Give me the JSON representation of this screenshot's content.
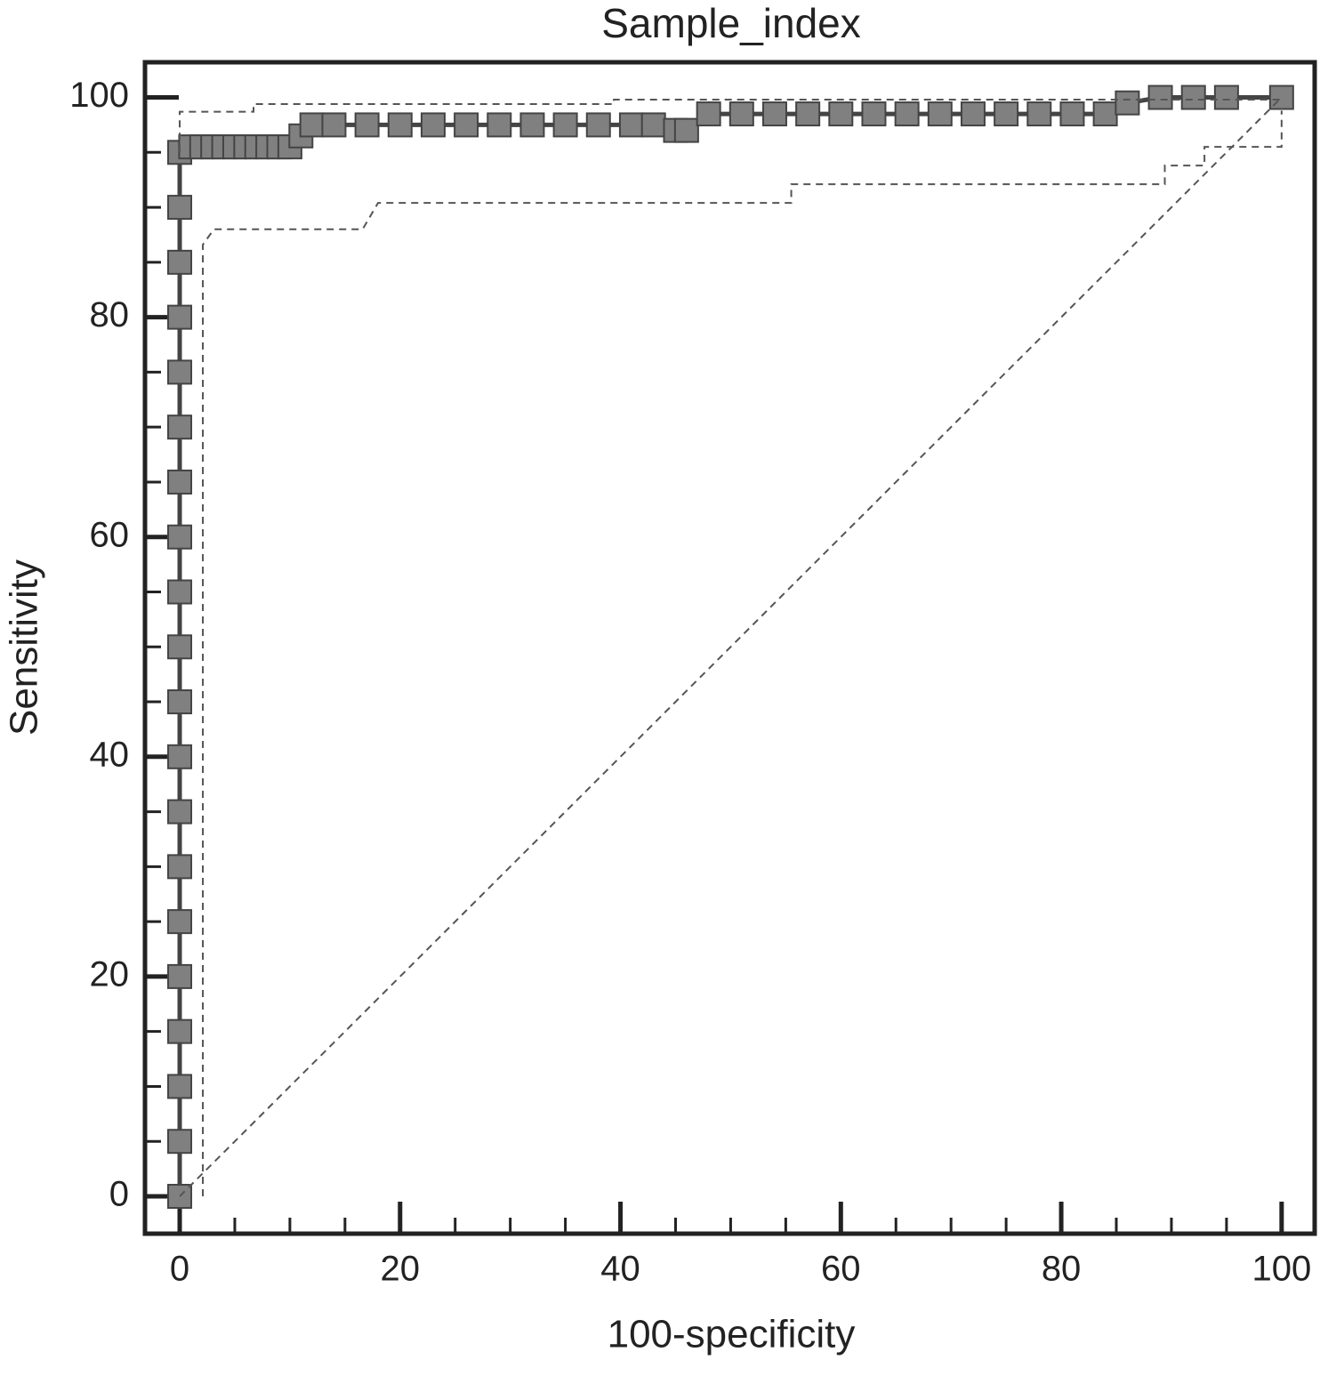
{
  "chart_data": {
    "type": "line",
    "title": "Sample_index",
    "x_label": "100-specificity",
    "y_label": "Sensitivity",
    "xlim": [
      -3.15,
      103
    ],
    "ylim": [
      -3.4,
      103.2
    ],
    "xticks": [
      0,
      20,
      40,
      60,
      80,
      100
    ],
    "yticks": [
      0,
      20,
      40,
      60,
      80,
      100
    ],
    "xminorticks": [
      5,
      10,
      15,
      25,
      30,
      35,
      45,
      50,
      55,
      65,
      70,
      75,
      85,
      90,
      95
    ],
    "yminorticks": [
      5,
      10,
      15,
      25,
      30,
      35,
      45,
      50,
      55,
      65,
      70,
      75,
      85,
      90,
      95
    ],
    "series": [
      {
        "style": "markers",
        "color": "#808080",
        "x": [
          0,
          0,
          0,
          0,
          0,
          0,
          0,
          0,
          0,
          0,
          0,
          0,
          0,
          0,
          0,
          0,
          0,
          0,
          0,
          0,
          1,
          2,
          3,
          4,
          5,
          6,
          7,
          8,
          9,
          10,
          11,
          12,
          14,
          17,
          20,
          23,
          26,
          29,
          32,
          35,
          38,
          41,
          43,
          45,
          46,
          48,
          51,
          54,
          57,
          60,
          63,
          66,
          69,
          72,
          75,
          78,
          81,
          84,
          86,
          89,
          92,
          95,
          100
        ],
        "values": [
          0,
          5,
          10,
          15,
          20,
          25,
          30,
          35,
          40,
          45,
          50,
          55,
          60,
          65,
          70,
          75,
          80,
          85,
          90,
          95,
          95.5,
          95.5,
          95.5,
          95.5,
          95.5,
          95.5,
          95.5,
          95.5,
          95.5,
          95.5,
          96.5,
          97.5,
          97.5,
          97.5,
          97.5,
          97.5,
          97.5,
          97.5,
          97.5,
          97.5,
          97.5,
          97.5,
          97.5,
          97,
          97,
          98.5,
          98.5,
          98.5,
          98.5,
          98.5,
          98.5,
          98.5,
          98.5,
          98.5,
          98.5,
          98.5,
          98.5,
          98.5,
          99.5,
          100,
          100,
          100,
          100
        ]
      },
      {
        "style": "dashed",
        "color": "#555555",
        "x": [
          0,
          0,
          6.7,
          6.7,
          39.4,
          39.4,
          100,
          100
        ],
        "values": [
          95,
          98.7,
          98.7,
          99.4,
          99.4,
          99.8,
          99.8,
          100
        ]
      },
      {
        "style": "dashed",
        "color": "#555555",
        "x": [
          2.1,
          2.1,
          3.1,
          3.1,
          16.6,
          18,
          18,
          55.5,
          55.5,
          89.4,
          89.4,
          93,
          93,
          100,
          100
        ],
        "values": [
          0,
          86.6,
          88,
          88,
          88,
          90.4,
          90.4,
          90.4,
          92.1,
          92.1,
          93.8,
          93.8,
          95.5,
          95.5,
          98.8
        ]
      },
      {
        "style": "dashed",
        "color": "#555555",
        "x": [
          0,
          100
        ],
        "values": [
          0,
          100
        ]
      }
    ]
  }
}
